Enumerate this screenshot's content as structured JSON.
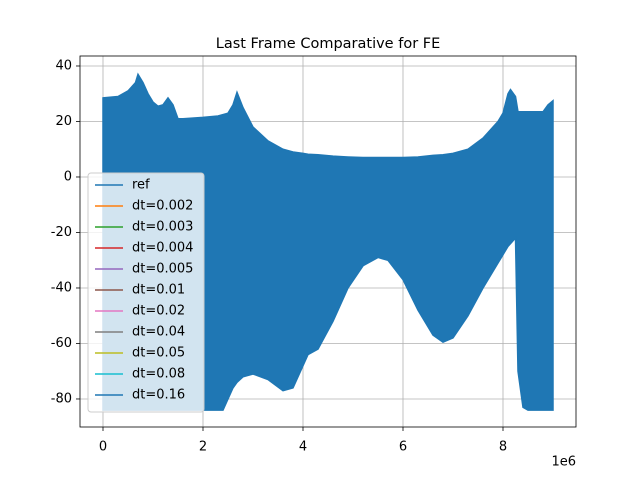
{
  "chart_data": {
    "type": "band",
    "title": "Last Frame Comparative for FE",
    "x_offset_text": "1e6",
    "x": [
      0,
      300000,
      500000,
      650000,
      700000,
      800000,
      900000,
      1000000,
      1100000,
      1200000,
      1300000,
      1400000,
      1500000,
      1600000,
      2000000,
      2300000,
      2400000,
      2500000,
      2600000,
      2680000,
      2800000,
      3000000,
      3300000,
      3600000,
      3800000,
      4000000,
      4100000,
      4300000,
      4600000,
      4900000,
      5200000,
      5500000,
      5700000,
      6000000,
      6300000,
      6600000,
      6800000,
      7000000,
      7300000,
      7600000,
      7900000,
      8000000,
      8100000,
      8150000,
      8250000,
      8300000,
      8400000,
      8500000,
      8800000,
      8900000,
      9000000
    ],
    "series": [
      {
        "name": "ref",
        "color": "#1f77b4",
        "upper": [
          28.5,
          29,
          31,
          34,
          37,
          34,
          30,
          27,
          25.5,
          26,
          28.5,
          26,
          21,
          21,
          21.5,
          22,
          22.5,
          23,
          26,
          30.5,
          25,
          18,
          13,
          10,
          9,
          8.5,
          8.2,
          8,
          7.5,
          7.2,
          7,
          7,
          7,
          7,
          7.2,
          7.8,
          8,
          8.5,
          10,
          14,
          20,
          23,
          30,
          31.5,
          29,
          23.5,
          23.5,
          23.5,
          23.5,
          26,
          27.5
        ],
        "lower": [
          -84,
          -84,
          -84,
          -84,
          -84,
          -84,
          -84,
          -84,
          -84,
          -84,
          -84,
          -84,
          -84,
          -84,
          -84,
          -84,
          -84,
          -80,
          -76,
          -74,
          -72,
          -71,
          -73,
          -77,
          -76,
          -68,
          -64,
          -62,
          -52,
          -40,
          -32,
          -29,
          -30,
          -37,
          -48,
          -57,
          -59.5,
          -58,
          -50,
          -40,
          -31,
          -28,
          -25,
          -24,
          -22,
          -70,
          -83,
          -84,
          -84,
          -84,
          -84
        ]
      },
      {
        "name": "dt=0.002",
        "color": "#ff7f0e"
      },
      {
        "name": "dt=0.003",
        "color": "#2ca02c"
      },
      {
        "name": "dt=0.004",
        "color": "#d62728"
      },
      {
        "name": "dt=0.005",
        "color": "#9467bd"
      },
      {
        "name": "dt=0.01",
        "color": "#8c564b"
      },
      {
        "name": "dt=0.02",
        "color": "#e377c2"
      },
      {
        "name": "dt=0.04",
        "color": "#7f7f7f"
      },
      {
        "name": "dt=0.05",
        "color": "#bcbd22"
      },
      {
        "name": "dt=0.08",
        "color": "#17becf"
      },
      {
        "name": "dt=0.16",
        "color": "#1f77b4"
      }
    ],
    "xlim": [
      -460000,
      9460000
    ],
    "xticks": [
      {
        "value": 0,
        "label": "0"
      },
      {
        "value": 2000000,
        "label": "2"
      },
      {
        "value": 4000000,
        "label": "4"
      },
      {
        "value": 6000000,
        "label": "6"
      },
      {
        "value": 8000000,
        "label": "8"
      }
    ],
    "ylim": [
      -90.1,
      43.6
    ],
    "yticks": [
      -80,
      -60,
      -40,
      -20,
      0,
      20,
      40
    ],
    "grid": true,
    "legend": "lower left"
  }
}
